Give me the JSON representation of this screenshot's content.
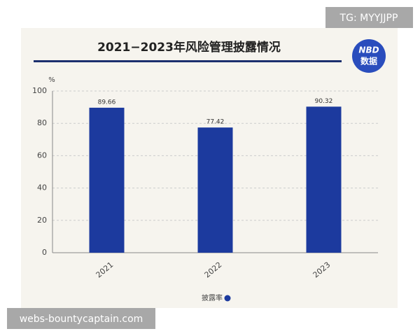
{
  "chart_data": {
    "type": "bar",
    "title": "2021−2023年风险管理披露情况",
    "y_label": "%",
    "categories": [
      "2021",
      "2022",
      "2023"
    ],
    "series": [
      {
        "name": "披露率",
        "color": "#1c3a9e",
        "values": [
          89.66,
          77.42,
          90.32
        ]
      }
    ],
    "ylim": [
      0,
      100
    ],
    "yticks": [
      0,
      20,
      40,
      60,
      80,
      100
    ],
    "grid": true,
    "legend": "bottom"
  },
  "logo": {
    "line1": "NBD",
    "line2": "数据"
  },
  "overlay_top": "TG: MYYJJPP",
  "overlay_bottom": "webs-bountycaptain.com"
}
